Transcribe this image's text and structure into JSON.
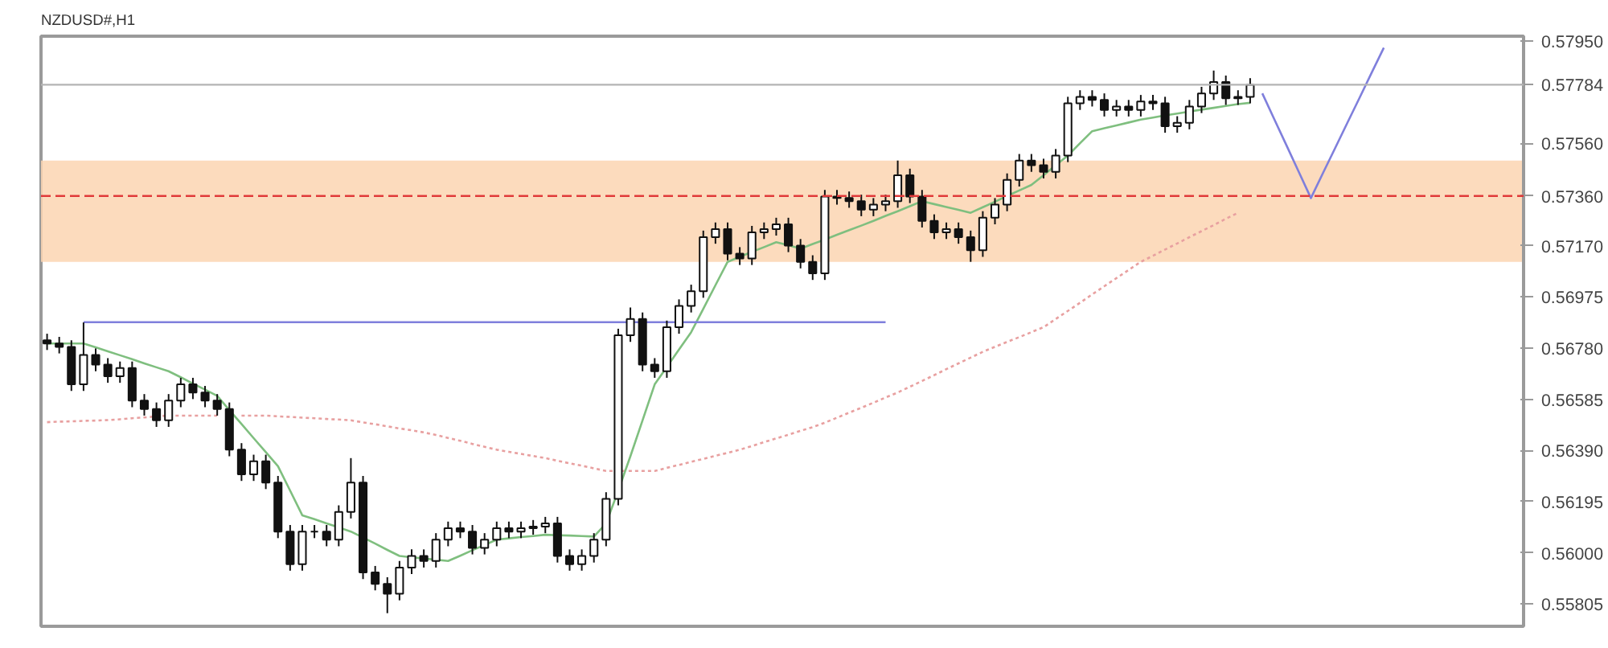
{
  "chart_data": {
    "type": "candlestick",
    "title": "NZDUSD#,H1",
    "color": "#111111",
    "categories": [
      null,
      null,
      null,
      null,
      null,
      null,
      null,
      null,
      null,
      null,
      null,
      null,
      null,
      null,
      null,
      null,
      null,
      null,
      null,
      null,
      null,
      null,
      null,
      null,
      null,
      null,
      null,
      null,
      null,
      null,
      null,
      null,
      null,
      null,
      null,
      null,
      null,
      null,
      null,
      null,
      null,
      null,
      null,
      null,
      null,
      null,
      null,
      null,
      null,
      null,
      null,
      null,
      null,
      null,
      null,
      null,
      null,
      null,
      null,
      null,
      null,
      null,
      null,
      null,
      null,
      null,
      null,
      null,
      null,
      null,
      null,
      null,
      null,
      null,
      null,
      null,
      null,
      null,
      null,
      null,
      null,
      null,
      null,
      null,
      null,
      null,
      null,
      null,
      null,
      null,
      null,
      null,
      null,
      null,
      null,
      null,
      null,
      null,
      null,
      null,
      null,
      null,
      null,
      null,
      null,
      null,
      null,
      null,
      null,
      null,
      null,
      null,
      null,
      null,
      null,
      null,
      null,
      null,
      null,
      null,
      null,
      null
    ],
    "ohlc": [
      [
        0.5681,
        0.56835,
        0.56773,
        0.56798
      ],
      [
        0.56798,
        0.56823,
        0.5676,
        0.56785
      ],
      [
        0.56785,
        0.5681,
        0.56617,
        0.56642
      ],
      [
        0.56642,
        0.56878,
        0.56617,
        0.56754
      ],
      [
        0.56754,
        0.56779,
        0.56692,
        0.56717
      ],
      [
        0.56717,
        0.56742,
        0.56648,
        0.56673
      ],
      [
        0.56673,
        0.56729,
        0.56648,
        0.56704
      ],
      [
        0.56704,
        0.56729,
        0.56555,
        0.5658
      ],
      [
        0.5658,
        0.56605,
        0.56523,
        0.56548
      ],
      [
        0.56548,
        0.56573,
        0.5648,
        0.56505
      ],
      [
        0.56505,
        0.56605,
        0.5648,
        0.5658
      ],
      [
        0.5658,
        0.56667,
        0.56555,
        0.56642
      ],
      [
        0.56642,
        0.56667,
        0.56586,
        0.56611
      ],
      [
        0.56611,
        0.56636,
        0.56555,
        0.5658
      ],
      [
        0.5658,
        0.56605,
        0.56523,
        0.56548
      ],
      [
        0.56548,
        0.56573,
        0.56368,
        0.56393
      ],
      [
        0.56393,
        0.56418,
        0.56274,
        0.56299
      ],
      [
        0.56299,
        0.56374,
        0.56274,
        0.56349
      ],
      [
        0.56349,
        0.56374,
        0.56243,
        0.56268
      ],
      [
        0.56268,
        0.56293,
        0.56056,
        0.56081
      ],
      [
        0.56081,
        0.56106,
        0.55932,
        0.55957
      ],
      [
        0.55957,
        0.56106,
        0.55932,
        0.56081
      ],
      [
        0.56081,
        0.56106,
        0.56056,
        0.56081
      ],
      [
        0.56081,
        0.56106,
        0.56025,
        0.5605
      ],
      [
        0.5605,
        0.56181,
        0.56025,
        0.56156
      ],
      [
        0.56156,
        0.56361,
        0.56131,
        0.56268
      ],
      [
        0.56268,
        0.56293,
        0.559,
        0.55925
      ],
      [
        0.55925,
        0.5595,
        0.55857,
        0.55882
      ],
      [
        0.55882,
        0.55907,
        0.5577,
        0.55844
      ],
      [
        0.55844,
        0.55969,
        0.55819,
        0.55944
      ],
      [
        0.55944,
        0.56013,
        0.55919,
        0.55988
      ],
      [
        0.55988,
        0.56013,
        0.55944,
        0.55969
      ],
      [
        0.55969,
        0.56075,
        0.55944,
        0.5605
      ],
      [
        0.5605,
        0.56119,
        0.56025,
        0.56094
      ],
      [
        0.56094,
        0.56119,
        0.56056,
        0.56081
      ],
      [
        0.56081,
        0.56106,
        0.55994,
        0.56019
      ],
      [
        0.56019,
        0.56075,
        0.55994,
        0.5605
      ],
      [
        0.5605,
        0.56119,
        0.56025,
        0.56094
      ],
      [
        0.56094,
        0.56119,
        0.56056,
        0.56081
      ],
      [
        0.56081,
        0.56119,
        0.56056,
        0.56094
      ],
      [
        0.56094,
        0.56125,
        0.56069,
        0.561
      ],
      [
        0.561,
        0.56137,
        0.56075,
        0.56112
      ],
      [
        0.56112,
        0.56137,
        0.55963,
        0.55988
      ],
      [
        0.55988,
        0.56013,
        0.55932,
        0.55957
      ],
      [
        0.55957,
        0.56013,
        0.55932,
        0.55988
      ],
      [
        0.55988,
        0.56075,
        0.55963,
        0.5605
      ],
      [
        0.5605,
        0.56231,
        0.56025,
        0.56206
      ],
      [
        0.56206,
        0.56854,
        0.56181,
        0.56829
      ],
      [
        0.56829,
        0.56935,
        0.56804,
        0.56891
      ],
      [
        0.56891,
        0.56916,
        0.56692,
        0.56717
      ],
      [
        0.56717,
        0.56742,
        0.56667,
        0.56692
      ],
      [
        0.56692,
        0.56885,
        0.56667,
        0.5686
      ],
      [
        0.5686,
        0.56966,
        0.56835,
        0.56941
      ],
      [
        0.56941,
        0.57022,
        0.56916,
        0.56997
      ],
      [
        0.56997,
        0.57228,
        0.56972,
        0.57203
      ],
      [
        0.57203,
        0.57259,
        0.57178,
        0.57234
      ],
      [
        0.57234,
        0.57259,
        0.57115,
        0.5714
      ],
      [
        0.5714,
        0.57165,
        0.57097,
        0.57122
      ],
      [
        0.57122,
        0.57246,
        0.57097,
        0.57221
      ],
      [
        0.57221,
        0.57259,
        0.57196,
        0.57234
      ],
      [
        0.57234,
        0.57277,
        0.57209,
        0.57252
      ],
      [
        0.57252,
        0.57277,
        0.57146,
        0.57171
      ],
      [
        0.57171,
        0.57196,
        0.57084,
        0.57109
      ],
      [
        0.57109,
        0.57134,
        0.5704,
        0.57065
      ],
      [
        0.57065,
        0.57383,
        0.5704,
        0.57358
      ],
      [
        0.57358,
        0.57383,
        0.57327,
        0.57352
      ],
      [
        0.57352,
        0.57377,
        0.57315,
        0.5734
      ],
      [
        0.5734,
        0.57365,
        0.57283,
        0.57308
      ],
      [
        0.57308,
        0.57352,
        0.57283,
        0.57327
      ],
      [
        0.57327,
        0.57365,
        0.57302,
        0.5734
      ],
      [
        0.5734,
        0.57495,
        0.57315,
        0.57439
      ],
      [
        0.57439,
        0.57464,
        0.57333,
        0.57358
      ],
      [
        0.57358,
        0.57383,
        0.5724,
        0.57265
      ],
      [
        0.57265,
        0.5729,
        0.57196,
        0.57221
      ],
      [
        0.57221,
        0.57259,
        0.57196,
        0.57234
      ],
      [
        0.57234,
        0.57259,
        0.57178,
        0.57203
      ],
      [
        0.57203,
        0.57228,
        0.57109,
        0.57153
      ],
      [
        0.57153,
        0.57302,
        0.57128,
        0.57277
      ],
      [
        0.57277,
        0.57352,
        0.57252,
        0.57327
      ],
      [
        0.57327,
        0.57446,
        0.57302,
        0.57421
      ],
      [
        0.57421,
        0.5752,
        0.57396,
        0.57495
      ],
      [
        0.57495,
        0.5752,
        0.57452,
        0.57477
      ],
      [
        0.57477,
        0.57502,
        0.57427,
        0.57452
      ],
      [
        0.57452,
        0.57539,
        0.57427,
        0.57514
      ],
      [
        0.57514,
        0.57738,
        0.57489,
        0.57713
      ],
      [
        0.57713,
        0.57763,
        0.57688,
        0.57738
      ],
      [
        0.57738,
        0.57763,
        0.57701,
        0.57726
      ],
      [
        0.57726,
        0.57751,
        0.57663,
        0.57688
      ],
      [
        0.57688,
        0.57726,
        0.57663,
        0.57701
      ],
      [
        0.57701,
        0.57726,
        0.57663,
        0.57688
      ],
      [
        0.57688,
        0.57745,
        0.57663,
        0.5772
      ],
      [
        0.5772,
        0.57745,
        0.57688,
        0.57713
      ],
      [
        0.57713,
        0.57738,
        0.57601,
        0.57626
      ],
      [
        0.57626,
        0.57664,
        0.57601,
        0.57639
      ],
      [
        0.57639,
        0.57726,
        0.57614,
        0.57701
      ],
      [
        0.57701,
        0.57776,
        0.57676,
        0.57751
      ],
      [
        0.57751,
        0.57838,
        0.57726,
        0.57794
      ],
      [
        0.57794,
        0.57819,
        0.57707,
        0.57732
      ],
      [
        0.57732,
        0.57763,
        0.57707,
        0.57738
      ],
      [
        0.57738,
        0.57809,
        0.57713,
        0.57784
      ],
      null,
      null,
      null,
      null,
      null,
      null,
      null,
      null,
      null,
      null,
      null,
      null,
      null,
      null,
      null,
      null,
      null,
      null,
      null,
      null,
      null,
      null
    ],
    "series": [
      {
        "type": "line",
        "color": "#e8a0a0",
        "line_style": "dotted",
        "values": [
          0.56498,
          0.565,
          0.56501,
          0.56503,
          0.56504,
          0.56506,
          0.56509,
          0.56513,
          0.56516,
          0.5652,
          0.56523,
          0.56523,
          0.56523,
          0.56523,
          0.56523,
          null,
          0.56523,
          0.56523,
          0.56523,
          0.5652,
          0.56518,
          0.56515,
          0.56513,
          0.5651,
          0.56508,
          0.56505,
          0.56497,
          0.5649,
          0.56482,
          0.56474,
          0.56467,
          0.56459,
          0.56449,
          0.56438,
          0.56427,
          0.56415,
          0.56404,
          0.56393,
          0.56385,
          0.56377,
          0.56369,
          0.56361,
          0.56351,
          0.56341,
          0.56332,
          0.56322,
          0.56312,
          0.56312,
          0.56312,
          0.56312,
          0.56312,
          0.56324,
          0.56335,
          0.56347,
          0.56358,
          0.5637,
          0.56381,
          0.56393,
          0.56407,
          0.56422,
          0.56436,
          0.5645,
          0.56465,
          0.56479,
          0.56496,
          0.56515,
          0.56534,
          0.56553,
          0.56572,
          0.56592,
          0.56611,
          0.56633,
          0.56655,
          0.56677,
          0.567,
          0.56722,
          0.56744,
          0.56766,
          0.56785,
          0.56804,
          0.56822,
          0.56841,
          0.5686,
          0.56891,
          0.56922,
          0.56953,
          0.56985,
          0.57016,
          0.57047,
          0.57078,
          0.57109,
          0.57132,
          0.57156,
          0.57179,
          0.57203,
          0.57226,
          0.57249,
          0.57273,
          0.57296,
          null,
          null,
          null,
          null,
          null,
          null,
          null,
          null,
          null,
          null,
          null,
          null,
          null,
          null,
          null,
          null,
          null,
          null,
          null,
          null,
          null,
          null,
          null
        ]
      },
      {
        "type": "line",
        "color": "#7fbf7f",
        "values": [
          0.56798,
          0.56798,
          0.56798,
          0.56798,
          0.56783,
          0.56768,
          0.56753,
          0.56738,
          0.56722,
          0.56707,
          0.56692,
          0.56669,
          0.56645,
          0.56622,
          0.56598,
          0.56544,
          0.56491,
          0.56437,
          0.56384,
          0.5633,
          0.56237,
          0.56143,
          0.56128,
          0.56112,
          0.56097,
          0.56081,
          0.56058,
          0.56035,
          0.56011,
          0.55988,
          0.55983,
          0.55978,
          0.55974,
          0.55969,
          0.55989,
          0.5601,
          0.5603,
          0.5605,
          0.56055,
          0.5606,
          0.56064,
          0.56069,
          0.56067,
          0.56066,
          0.56064,
          0.56062,
          0.56112,
          0.56237,
          0.56368,
          0.56505,
          0.56642,
          0.56708,
          0.56775,
          0.56841,
          0.5693,
          0.5702,
          0.57109,
          0.57128,
          0.57147,
          0.57165,
          0.57184,
          0.57172,
          0.57159,
          0.57177,
          0.57194,
          0.57212,
          0.5723,
          0.57247,
          0.57265,
          0.57284,
          0.57302,
          0.57321,
          0.5734,
          0.57329,
          0.57318,
          0.57307,
          0.57296,
          0.57317,
          0.57338,
          0.5736,
          0.57381,
          0.57402,
          0.57439,
          0.57477,
          0.57514,
          0.57561,
          0.57607,
          0.57618,
          0.57629,
          0.5764,
          0.57651,
          0.57659,
          0.57667,
          0.57674,
          0.57682,
          0.57689,
          0.57696,
          0.57703,
          0.5771,
          0.57715,
          null,
          null,
          null,
          null,
          null,
          null,
          null,
          null,
          null,
          null,
          null,
          null,
          null,
          null,
          null,
          null,
          null,
          null,
          null,
          null,
          null,
          null
        ]
      },
      {
        "type": "line",
        "color": "#7f7fdc",
        "values": [
          null,
          null,
          null,
          0.56879,
          0.56879,
          0.56879,
          0.56879,
          0.56879,
          0.56879,
          0.56879,
          0.56879,
          0.56879,
          0.56879,
          0.56879,
          0.56879,
          0.56879,
          0.56879,
          0.56879,
          0.56879,
          0.56879,
          0.56879,
          0.56879,
          0.56879,
          0.56879,
          0.56879,
          0.56879,
          0.56879,
          0.56879,
          0.56879,
          0.56879,
          0.56879,
          0.56879,
          0.56879,
          0.56879,
          0.56879,
          0.56879,
          0.56879,
          0.56879,
          0.56879,
          0.56879,
          0.56879,
          0.56879,
          0.56879,
          0.56879,
          0.56879,
          0.56879,
          0.56879,
          0.56879,
          0.56879,
          0.56879,
          0.56879,
          0.56879,
          0.56879,
          0.56879,
          0.56879,
          0.56879,
          0.56879,
          0.56879,
          0.56879,
          0.56879,
          0.56879,
          0.56879,
          0.56879,
          0.56879,
          0.56879,
          0.56879,
          0.56879,
          0.56879,
          0.56879,
          0.56879,
          null,
          null,
          null,
          null,
          null,
          null,
          null,
          null,
          null,
          null,
          null,
          null,
          null,
          null,
          null,
          null,
          null,
          null,
          null,
          null,
          null,
          null,
          null,
          null,
          null,
          null,
          null,
          null,
          null,
          null,
          null,
          null,
          null,
          null,
          null,
          null,
          null,
          null,
          null,
          null,
          null,
          null,
          null,
          null,
          null,
          null,
          null,
          null,
          null,
          null,
          null,
          null
        ]
      },
      {
        "type": "line",
        "color": "#7f7fdc",
        "values": [
          null,
          null,
          null,
          null,
          null,
          null,
          null,
          null,
          null,
          null,
          null,
          null,
          null,
          null,
          null,
          null,
          null,
          null,
          null,
          null,
          null,
          null,
          null,
          null,
          null,
          null,
          null,
          null,
          null,
          null,
          null,
          null,
          null,
          null,
          null,
          null,
          null,
          null,
          null,
          null,
          null,
          null,
          null,
          null,
          null,
          null,
          null,
          null,
          null,
          null,
          null,
          null,
          null,
          null,
          null,
          null,
          null,
          null,
          null,
          null,
          null,
          null,
          null,
          null,
          null,
          null,
          null,
          null,
          null,
          null,
          null,
          null,
          null,
          null,
          null,
          null,
          null,
          null,
          null,
          null,
          null,
          null,
          null,
          null,
          null,
          null,
          null,
          null,
          null,
          null,
          null,
          null,
          null,
          null,
          null,
          null,
          null,
          null,
          null,
          null,
          0.57751,
          0.57651,
          0.57552,
          0.57452,
          0.57352,
          0.57448,
          0.57543,
          0.57639,
          0.57734,
          0.5783,
          0.57925,
          null,
          null,
          null,
          null,
          null,
          null,
          null,
          null,
          null,
          null,
          null
        ]
      }
    ],
    "bands": [
      {
        "axis": "y",
        "from": 0.57109,
        "to": 0.57408,
        "color": "#fbd5b2"
      },
      {
        "axis": "y",
        "from": 0.57408,
        "to": 0.57495,
        "color": "#fbd5b2"
      }
    ],
    "ref_lines": [
      {
        "axis": "y",
        "value": 0.57784,
        "label": "0.57784",
        "color": "#b4b4b4",
        "line_style": "solid"
      },
      {
        "axis": "y",
        "value": 0.5736,
        "label": "0.57360",
        "color": "#e03a3a",
        "line_style": "dashed"
      }
    ],
    "ylim": [
      0.5572,
      0.57969
    ],
    "yticks": [
      {
        "value": 0.5795,
        "label": "0.57950"
      },
      {
        "value": 0.5756,
        "label": "0.57560"
      },
      {
        "value": 0.5717,
        "label": "0.57170"
      },
      0.56975,
      {
        "value": 0.5678,
        "label": "0.56780"
      },
      0.56585,
      {
        "value": 0.5639,
        "label": "0.56390"
      },
      0.56195,
      {
        "value": 0.56,
        "label": "0.56000"
      },
      0.55805
    ],
    "tick_labels": "y",
    "grid": false
  }
}
